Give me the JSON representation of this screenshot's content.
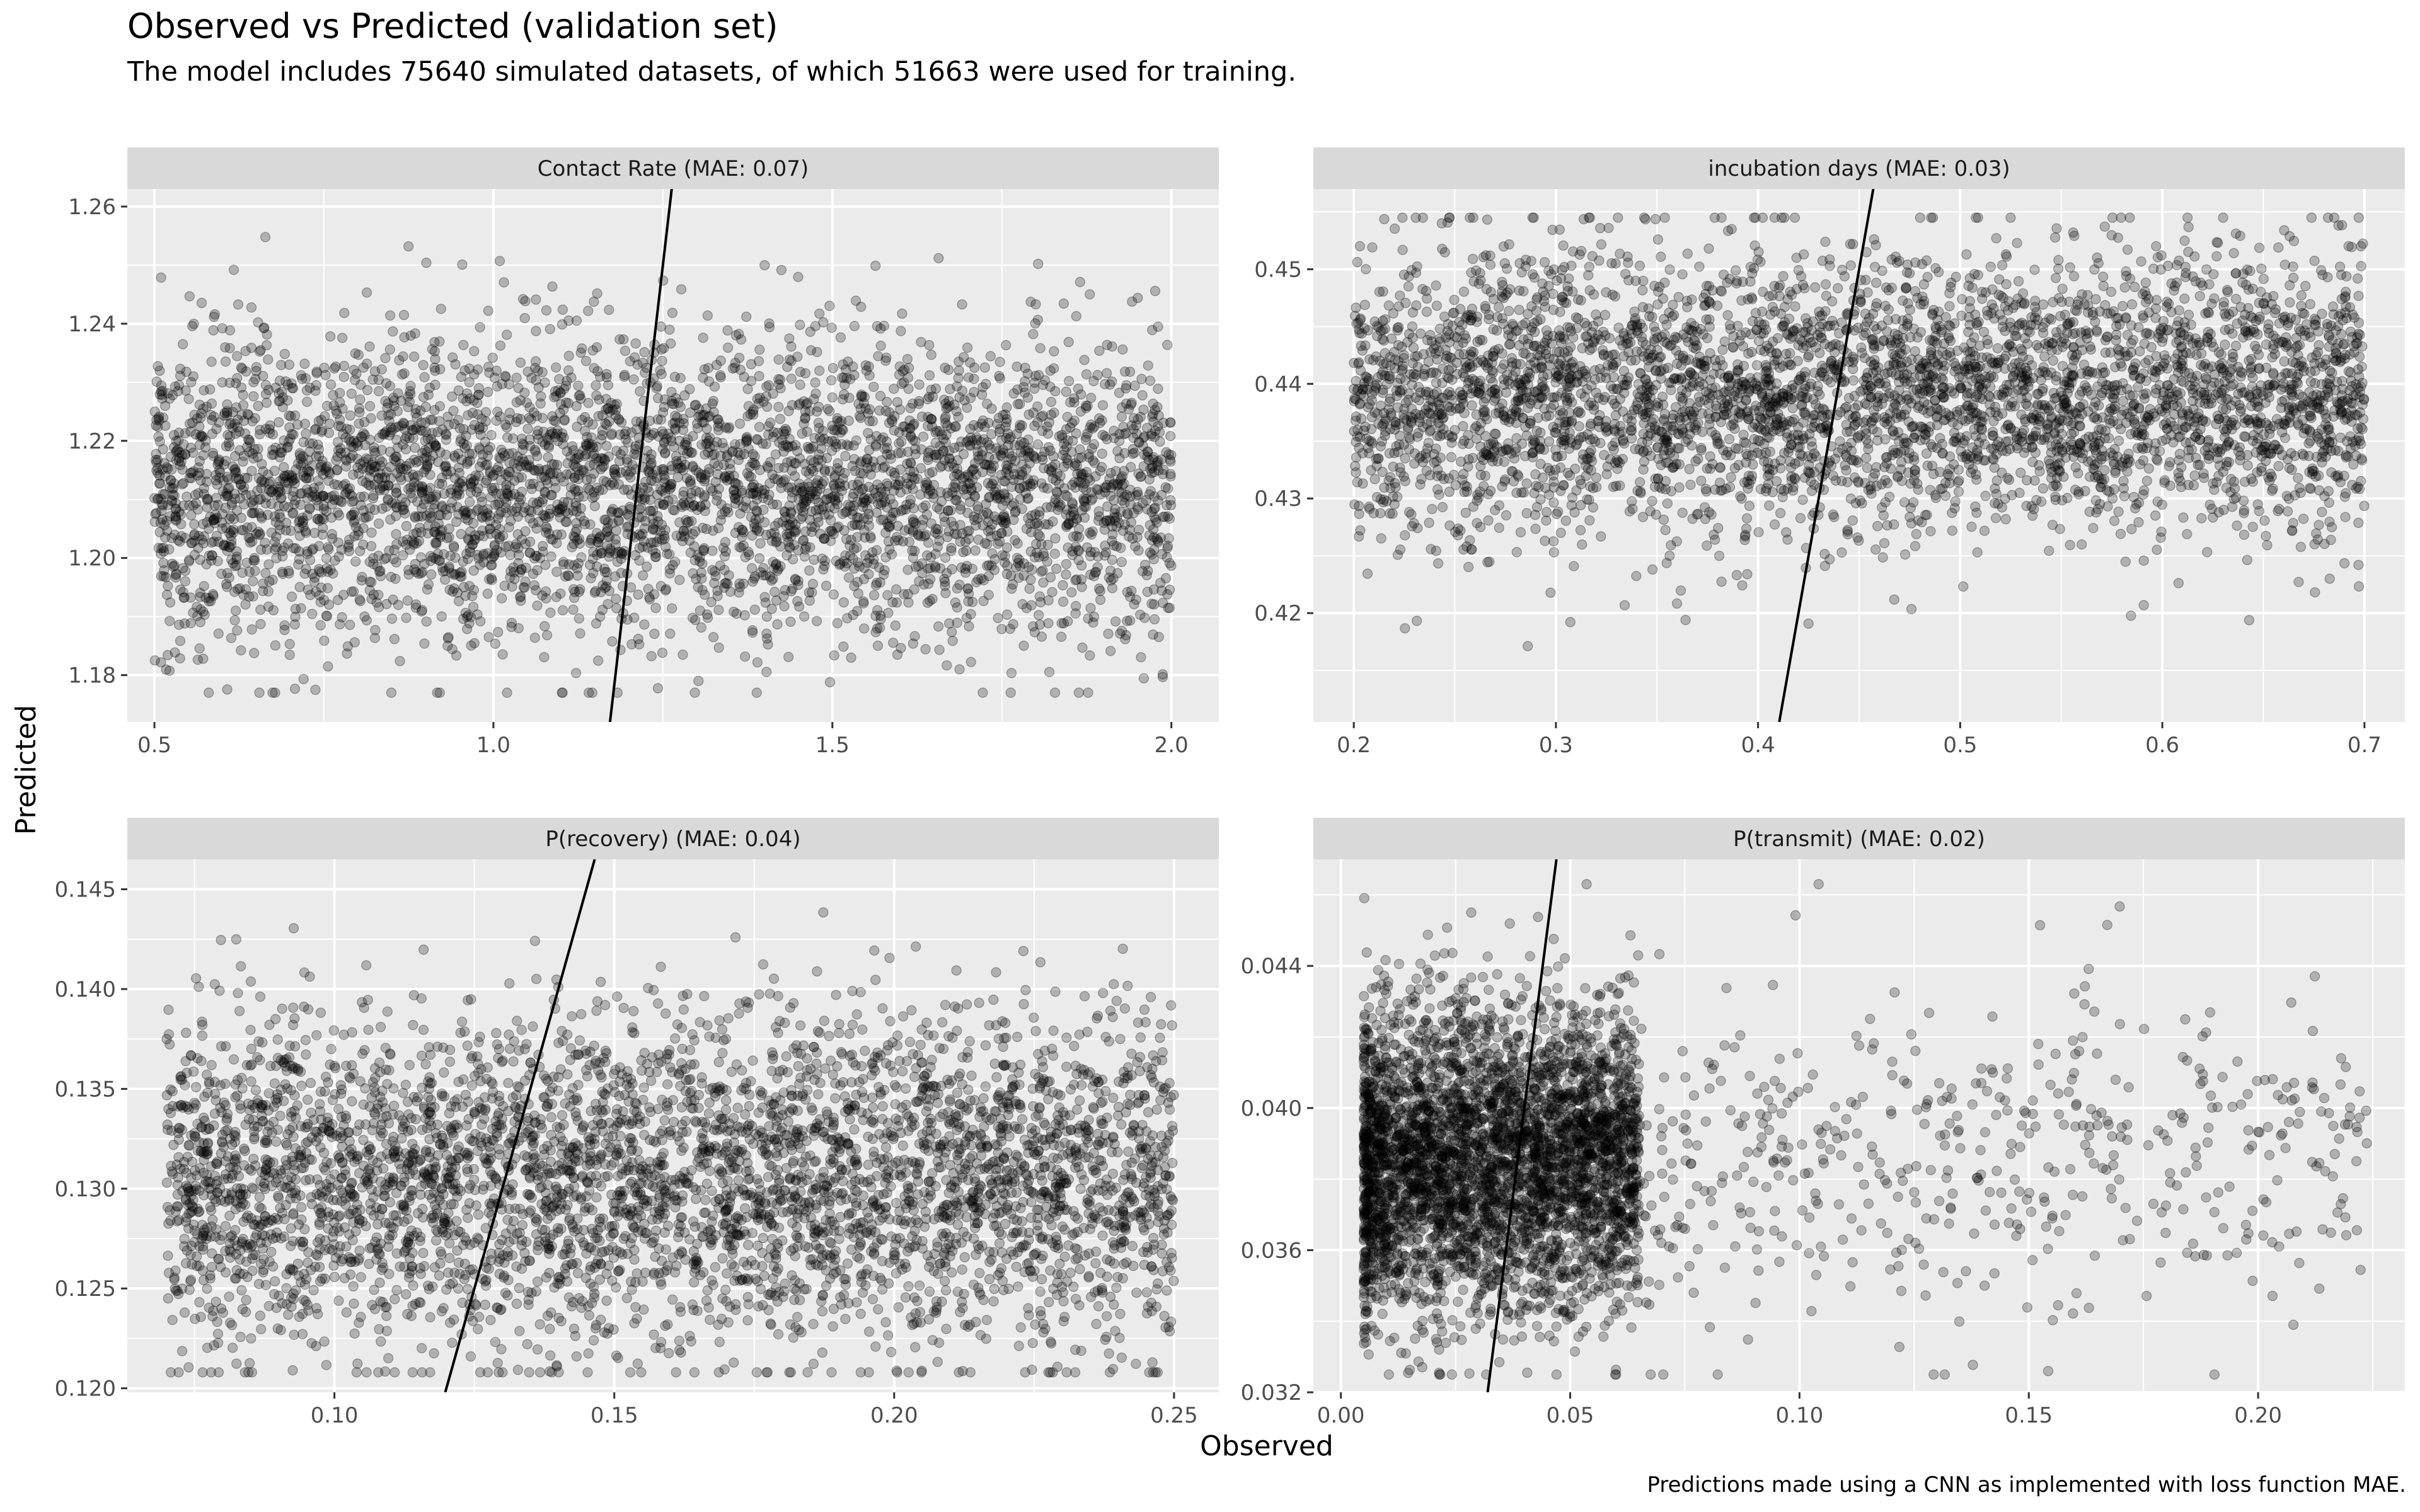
{
  "title": "Observed vs Predicted (validation set)",
  "subtitle": "The model includes 75640 simulated datasets, of which 51663 were used for training.",
  "caption": "Predictions made using a CNN as implemented with loss function MAE.",
  "x_axis_title": "Observed",
  "y_axis_title": "Predicted",
  "colors": {
    "panel_background": "#ebebeb",
    "strip_background": "#d9d9d9",
    "grid_major": "#ffffff",
    "point_fill": "#000000",
    "reference_line": "#000000"
  },
  "chart_data": [
    {
      "type": "scatter",
      "facet": "Contact Rate (MAE: 0.07)",
      "xlim": [
        0.46,
        2.07
      ],
      "ylim": [
        1.172,
        1.263
      ],
      "x_ticks": [
        "0.5",
        "1.0",
        "1.5",
        "2.0"
      ],
      "y_ticks": [
        "1.18",
        "1.20",
        "1.22",
        "1.24",
        "1.26"
      ],
      "point_alpha": 0.25,
      "n_points": 4400,
      "approx_distribution": {
        "x_range": [
          0.5,
          2.0
        ],
        "y_mean": 1.212,
        "y_sd": 0.013,
        "y_range": [
          1.177,
          1.257
        ]
      },
      "reference_line": {
        "slope": 1,
        "intercept": 0
      }
    },
    {
      "type": "scatter",
      "facet": "incubation days (MAE: 0.03)",
      "xlim": [
        0.18,
        0.72
      ],
      "ylim": [
        0.4105,
        0.457
      ],
      "x_ticks": [
        "0.2",
        "0.3",
        "0.4",
        "0.5",
        "0.6",
        "0.7"
      ],
      "y_ticks": [
        "0.42",
        "0.43",
        "0.44",
        "0.45"
      ],
      "point_alpha": 0.25,
      "n_points": 4400,
      "approx_distribution": {
        "x_range": [
          0.2,
          0.7
        ],
        "y_mean": 0.439,
        "y_sd": 0.0062,
        "y_range": [
          0.413,
          0.4545
        ]
      },
      "reference_line": {
        "slope": 1,
        "intercept": 0
      }
    },
    {
      "type": "scatter",
      "facet": "P(recovery) (MAE: 0.04)",
      "xlim": [
        0.063,
        0.258
      ],
      "ylim": [
        0.1198,
        0.1465
      ],
      "x_ticks": [
        "0.10",
        "0.15",
        "0.20",
        "0.25"
      ],
      "y_ticks": [
        "0.120",
        "0.125",
        "0.130",
        "0.135",
        "0.140",
        "0.145"
      ],
      "point_alpha": 0.25,
      "n_points": 4400,
      "approx_distribution": {
        "x_range": [
          0.07,
          0.25
        ],
        "y_mean": 0.1305,
        "y_sd": 0.0042,
        "y_range": [
          0.1208,
          0.1448
        ]
      },
      "reference_line": {
        "slope": 1,
        "intercept": 0
      }
    },
    {
      "type": "scatter",
      "facet": "P(transmit) (MAE: 0.02)",
      "xlim": [
        -0.006,
        0.232
      ],
      "ylim": [
        0.032,
        0.047
      ],
      "x_ticks": [
        "0.00",
        "0.05",
        "0.10",
        "0.15",
        "0.20"
      ],
      "y_ticks": [
        "0.032",
        "0.036",
        "0.040",
        "0.044"
      ],
      "point_alpha": 0.25,
      "n_points": 4400,
      "approx_distribution": {
        "x_range": [
          0.005,
          0.224
        ],
        "x_skew": "right-skewed, most mass below 0.07",
        "y_mean": 0.0385,
        "y_sd": 0.0022,
        "y_range": [
          0.0325,
          0.0463
        ]
      },
      "reference_line": {
        "slope": 1,
        "intercept": 0
      }
    }
  ]
}
